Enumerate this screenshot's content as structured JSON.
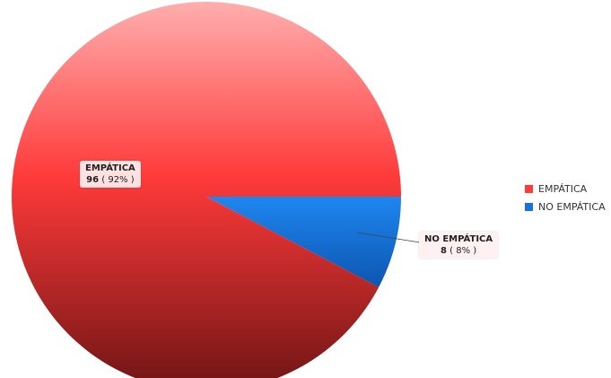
{
  "chart_data": {
    "type": "pie",
    "title": "",
    "slices": [
      {
        "label": "EMPÁTICA",
        "value": 96,
        "percent_text": "( 92% )",
        "color": "#ff3b3b"
      },
      {
        "label": "NO EMPÁTICA",
        "value": 8,
        "percent_text": "( 8% )",
        "color": "#1a72d8"
      }
    ],
    "legend": {
      "position": "right",
      "entries": [
        "EMPÁTICA",
        "NO EMPÁTICA"
      ]
    }
  }
}
